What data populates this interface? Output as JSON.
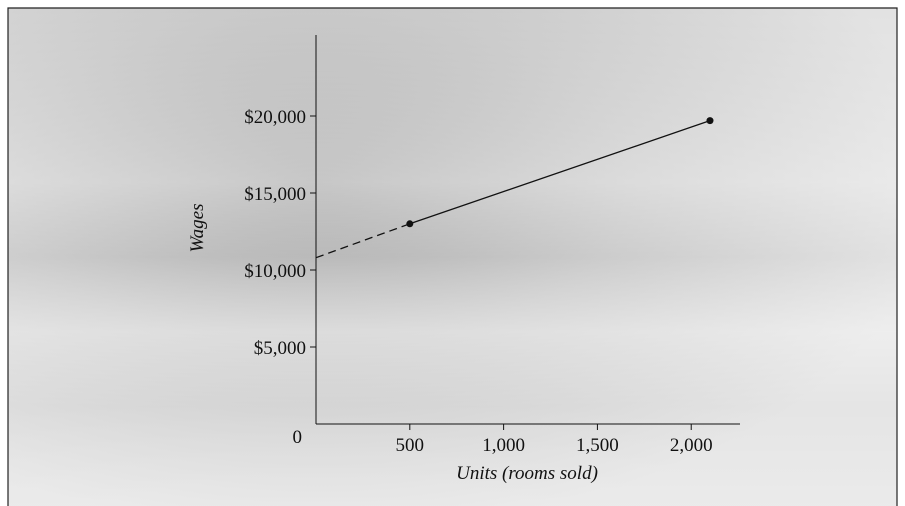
{
  "chart_data": {
    "type": "line",
    "x_label": "Units (rooms sold)",
    "y_label": "Wages",
    "xlim": [
      0,
      2260
    ],
    "ylim": [
      0,
      25000
    ],
    "xticks": [
      500,
      {
        "value": 1000,
        "label": "1,000"
      },
      {
        "value": 1500,
        "label": "1,500"
      },
      {
        "value": 2000,
        "label": "2,000"
      }
    ],
    "yticks": [
      0,
      {
        "value": 5000,
        "label": "$5,000"
      },
      {
        "value": 10000,
        "label": "$10,000"
      },
      {
        "value": 15000,
        "label": "$15,000"
      },
      {
        "value": 20000,
        "label": "$20,000"
      }
    ],
    "series": [
      {
        "color": "#111111",
        "linestyle": "dashed",
        "markers": false,
        "x": [
          0,
          500
        ],
        "values": [
          10800,
          13000
        ]
      },
      {
        "color": "#111111",
        "linestyle": "solid",
        "markers": true,
        "x": [
          500,
          2100
        ],
        "values": [
          13000,
          19700
        ]
      }
    ]
  }
}
